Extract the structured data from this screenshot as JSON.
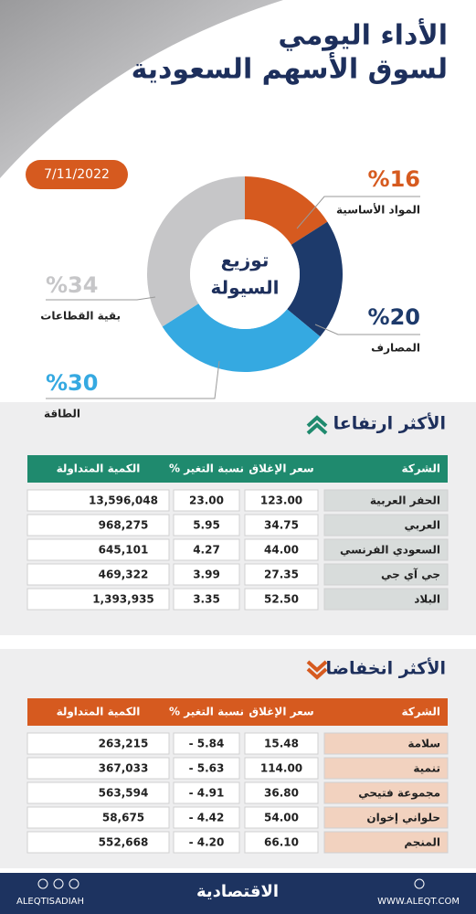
{
  "header": {
    "title_line1": "الأداء اليومي",
    "title_line2": "لسوق الأسهم السعودية",
    "date": "7/11/2022"
  },
  "chart_data": {
    "type": "pie",
    "center_label": [
      "توزيع",
      "السيولة"
    ],
    "categories": [
      "المواد الأساسية",
      "المصارف",
      "الطاقة",
      "بقية القطاعات"
    ],
    "values": [
      16,
      20,
      30,
      34
    ],
    "value_labels": [
      "%16",
      "%20",
      "%30",
      "%34"
    ],
    "colors": [
      "#d65a1f",
      "#1d3a6b",
      "#35a9e1",
      "#c6c6c8"
    ]
  },
  "gainers": {
    "title": "الأكثر ارتفاعا",
    "columns": [
      "الشركة",
      "سعر الإغلاق",
      "نسبة التغير %",
      "الكمية المتداولة"
    ],
    "rows": [
      [
        "الحفر العربية",
        "123.00",
        "23.00",
        "13,596,048"
      ],
      [
        "العربي",
        "34.75",
        "5.95",
        "968,275"
      ],
      [
        "السعودي الفرنسي",
        "44.00",
        "4.27",
        "645,101"
      ],
      [
        "جي آي جي",
        "27.35",
        "3.99",
        "469,322"
      ],
      [
        "البلاد",
        "52.50",
        "3.35",
        "1,393,935"
      ]
    ]
  },
  "losers": {
    "title": "الأكثر انخفاضا",
    "columns": [
      "الشركة",
      "سعر الإغلاق",
      "نسبة التغير %",
      "الكمية المتداولة"
    ],
    "rows": [
      [
        "سلامة",
        "15.48",
        "- 5.84",
        "263,215"
      ],
      [
        "تنمية",
        "114.00",
        "- 5.63",
        "367,033"
      ],
      [
        "مجموعة فتيحي",
        "36.80",
        "- 4.91",
        "563,594"
      ],
      [
        "حلواني إخوان",
        "54.00",
        "- 4.42",
        "58,675"
      ],
      [
        "المنجم",
        "66.10",
        "- 4.20",
        "552,668"
      ]
    ]
  },
  "footer": {
    "handle": "ALEQTISADIAH",
    "brand": "الاقتصادية",
    "website": "WWW.ALEQT.COM"
  }
}
